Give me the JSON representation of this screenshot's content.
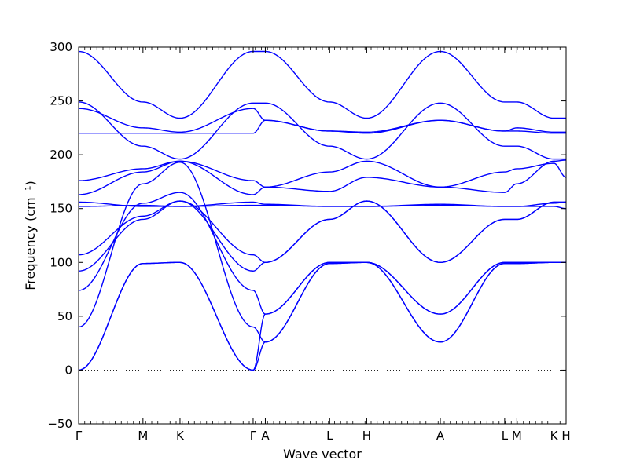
{
  "chart_data": {
    "type": "line",
    "title": "",
    "xlabel": "Wave vector",
    "ylabel": "Frequency (cm⁻¹)",
    "ylim": [
      -50,
      300
    ],
    "yticks": [
      -50,
      0,
      50,
      100,
      150,
      200,
      250,
      300
    ],
    "xticks": [
      {
        "label": "Γ",
        "x": 0.0
      },
      {
        "label": "M",
        "x": 0.132
      },
      {
        "label": "K",
        "x": 0.208
      },
      {
        "label": "Γ",
        "x": 0.358
      },
      {
        "label": "A",
        "x": 0.383
      },
      {
        "label": "L",
        "x": 0.515
      },
      {
        "label": "H",
        "x": 0.591
      },
      {
        "label": "A",
        "x": 0.742
      },
      {
        "label": "L",
        "x": 0.874
      },
      {
        "label": "M",
        "x": 0.899
      },
      {
        "label": "K",
        "x": 0.975
      },
      {
        "label": "H",
        "x": 1.0
      }
    ],
    "xlim": [
      0,
      1
    ],
    "zero_line": {
      "y": 0,
      "style": "dotted"
    },
    "line_color": "#0000ff",
    "series": [
      {
        "x": [
          0,
          0.132,
          0.208,
          0.358,
          0.383,
          0.515,
          0.591,
          0.742,
          0.874,
          0.899,
          0.975,
          1.0
        ],
        "y": [
          296,
          249,
          234,
          296,
          296,
          249,
          234,
          296,
          249,
          249,
          234,
          234
        ]
      },
      {
        "x": [
          0,
          0.132,
          0.208,
          0.358,
          0.383,
          0.515,
          0.591,
          0.742,
          0.874,
          0.899,
          0.975,
          1.0
        ],
        "y": [
          249,
          208,
          196,
          248,
          248,
          208,
          196,
          248,
          208,
          208,
          196,
          196
        ]
      },
      {
        "x": [
          0,
          0.132,
          0.208,
          0.358,
          0.383,
          0.515,
          0.591,
          0.742,
          0.874,
          0.899,
          0.975,
          1.0
        ],
        "y": [
          243,
          225,
          221,
          243,
          232,
          222,
          221,
          232,
          222,
          225,
          221,
          221
        ]
      },
      {
        "x": [
          0,
          0.132,
          0.208,
          0.358,
          0.383,
          0.515,
          0.591,
          0.742,
          0.874,
          0.899,
          0.975,
          1.0
        ],
        "y": [
          220,
          220,
          220,
          220,
          232,
          222,
          220,
          232,
          222,
          222,
          220,
          220
        ]
      },
      {
        "x": [
          0,
          0.132,
          0.208,
          0.358,
          0.383,
          0.515,
          0.591,
          0.742,
          0.874,
          0.899,
          0.975,
          1.0
        ],
        "y": [
          176,
          187,
          194,
          163,
          170,
          184,
          194,
          170,
          184,
          187,
          192,
          179
        ]
      },
      {
        "x": [
          0,
          0.132,
          0.208,
          0.358,
          0.383,
          0.515,
          0.591,
          0.742,
          0.874,
          0.899,
          0.975,
          1.0
        ],
        "y": [
          163,
          184,
          194,
          176,
          170,
          166,
          179,
          170,
          165,
          173,
          194,
          195
        ]
      },
      {
        "x": [
          0,
          0.132,
          0.208,
          0.358,
          0.383,
          0.515,
          0.591,
          0.742,
          0.874,
          0.899,
          0.975,
          1.0
        ],
        "y": [
          156,
          152,
          152,
          156,
          154,
          152,
          152,
          154,
          152,
          152,
          152,
          150
        ]
      },
      {
        "x": [
          0,
          0.132,
          0.208,
          0.358,
          0.383,
          0.515,
          0.591,
          0.742,
          0.874,
          0.899,
          0.975,
          1.0
        ],
        "y": [
          152,
          153,
          152,
          153,
          153,
          152,
          152,
          153,
          152,
          152,
          155,
          156
        ]
      },
      {
        "x": [
          0,
          0.132,
          0.208,
          0.358,
          0.383,
          0.515,
          0.591,
          0.742,
          0.874,
          0.899,
          0.975,
          1.0
        ],
        "y": [
          107,
          143,
          157,
          107,
          100,
          140,
          157,
          100,
          140,
          140,
          156,
          156
        ]
      },
      {
        "x": [
          0,
          0.132,
          0.208,
          0.358,
          0.383,
          0.515,
          0.591,
          0.742,
          0.874,
          0.899,
          0.975,
          1.0
        ],
        "y": [
          92,
          140,
          157,
          92,
          100,
          140,
          157,
          100,
          140,
          140,
          156,
          156
        ]
      },
      {
        "x": [
          0,
          0.132,
          0.208,
          0.358,
          0.383,
          0.515,
          0.591,
          0.742,
          0.874,
          0.899,
          0.975,
          1.0
        ],
        "y": [
          74,
          155,
          165,
          74,
          52,
          100,
          100,
          52,
          100,
          100,
          100,
          100
        ]
      },
      {
        "x": [
          0,
          0.132,
          0.208,
          0.358,
          0.383,
          0.515,
          0.591,
          0.742,
          0.874,
          0.899,
          0.975,
          1.0
        ],
        "y": [
          40,
          173,
          193,
          40,
          26,
          99,
          100,
          26,
          99,
          99,
          100,
          100
        ]
      },
      {
        "x": [
          0,
          0.132,
          0.208,
          0.358,
          0.383,
          0.515,
          0.591,
          0.742,
          0.874,
          0.899,
          0.975,
          1.0
        ],
        "y": [
          0,
          99,
          100,
          0,
          26,
          99,
          100,
          26,
          99,
          99,
          100,
          100
        ]
      },
      {
        "x": [
          0,
          0.132,
          0.208,
          0.358,
          0.383,
          0.515,
          0.591,
          0.742,
          0.874,
          0.899,
          0.975,
          1.0
        ],
        "y": [
          0,
          99,
          100,
          0,
          52,
          100,
          100,
          52,
          100,
          100,
          100,
          100
        ]
      }
    ]
  }
}
